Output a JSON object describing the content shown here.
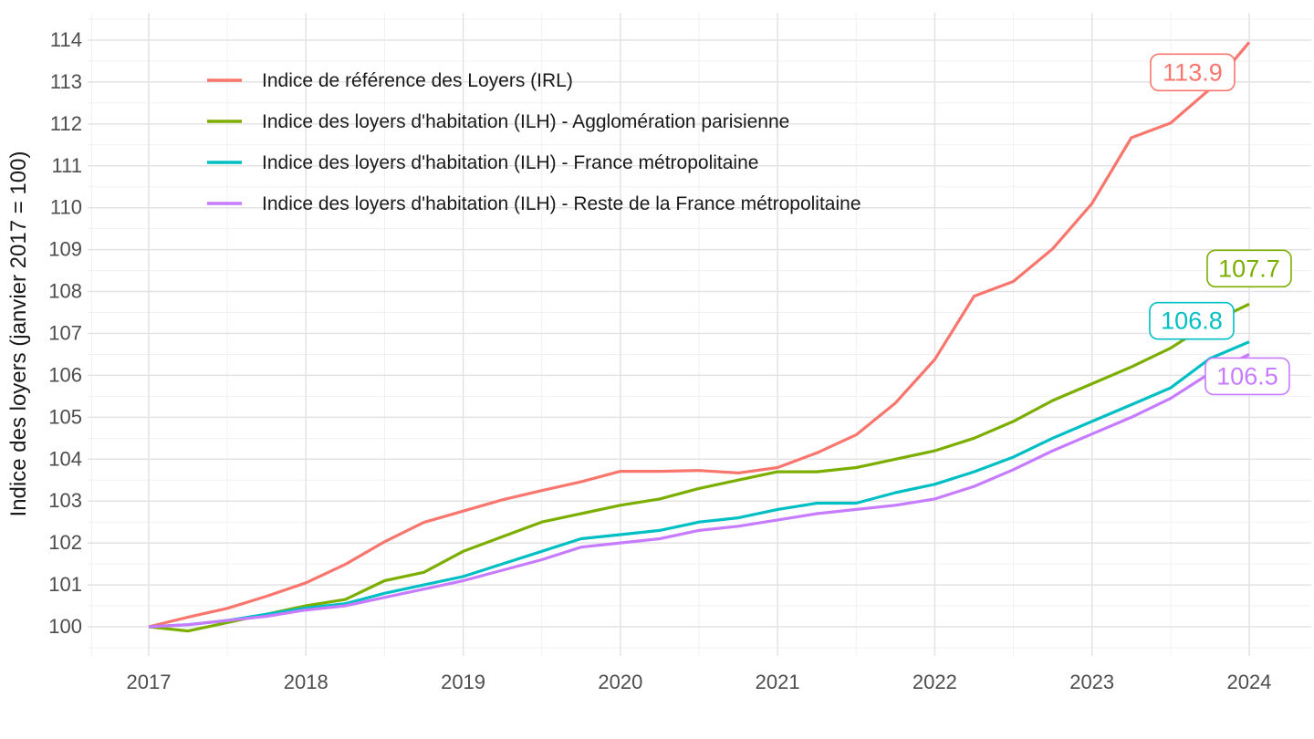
{
  "figure": {
    "background": "#FFFFFF"
  },
  "axis": {
    "tick_color": "#4D4D4D",
    "title_color": "#1A1A1A",
    "grid_major_color": "#E3E3E3",
    "grid_minor_color": "#F1F1F1"
  },
  "chart_data": {
    "type": "line",
    "title": "",
    "xlabel": "",
    "ylabel": "Indice des loyers (janvier 2017 = 100)",
    "x_ticks": [
      2017,
      2018,
      2019,
      2020,
      2021,
      2022,
      2023,
      2024
    ],
    "y_ticks": [
      100,
      101,
      102,
      103,
      104,
      105,
      106,
      107,
      108,
      109,
      110,
      111,
      112,
      113,
      114
    ],
    "xlim": [
      2016.62,
      2024.4
    ],
    "ylim": [
      99.45,
      114.55
    ],
    "grid": "major+minor",
    "legend_position": "inside-top-left",
    "x": [
      2017.0,
      2017.25,
      2017.5,
      2017.75,
      2018.0,
      2018.25,
      2018.5,
      2018.75,
      2019.0,
      2019.25,
      2019.5,
      2019.75,
      2020.0,
      2020.25,
      2020.5,
      2020.75,
      2021.0,
      2021.25,
      2021.5,
      2021.75,
      2022.0,
      2022.25,
      2022.5,
      2022.75,
      2023.0,
      2023.25,
      2023.5,
      2023.75,
      2024.0
    ],
    "series": [
      {
        "name": "Indice de référence des Loyers (IRL)",
        "color": "#F8766D",
        "end_label": "113.9",
        "values": [
          100.0,
          100.23,
          100.44,
          100.73,
          101.05,
          101.49,
          102.03,
          102.49,
          102.76,
          103.03,
          103.25,
          103.46,
          103.71,
          103.71,
          103.73,
          103.67,
          103.8,
          104.15,
          104.58,
          105.34,
          106.38,
          107.89,
          108.24,
          109.02,
          110.1,
          111.67,
          112.02,
          112.83,
          113.95
        ]
      },
      {
        "name": "Indice des loyers d'habitation (ILH) - Agglomération parisienne",
        "color": "#7CAE00",
        "end_label": "107.7",
        "values": [
          100.0,
          99.9,
          100.1,
          100.3,
          100.5,
          100.65,
          101.1,
          101.3,
          101.8,
          102.15,
          102.5,
          102.7,
          102.9,
          103.05,
          103.3,
          103.5,
          103.7,
          103.7,
          103.8,
          104.0,
          104.2,
          104.5,
          104.9,
          105.4,
          105.8,
          106.2,
          106.65,
          107.25,
          107.7
        ]
      },
      {
        "name": "Indice des loyers d'habitation (ILH) - France métropolitaine",
        "color": "#00BFC4",
        "end_label": "106.8",
        "values": [
          100.0,
          100.05,
          100.15,
          100.3,
          100.45,
          100.55,
          100.8,
          101.0,
          101.2,
          101.5,
          101.8,
          102.1,
          102.2,
          102.3,
          102.5,
          102.6,
          102.8,
          102.95,
          102.95,
          103.2,
          103.4,
          103.7,
          104.05,
          104.5,
          104.9,
          105.3,
          105.7,
          106.4,
          106.8
        ]
      },
      {
        "name": "Indice des loyers d'habitation (ILH) - Reste de la France métropolitaine",
        "color": "#C77CFF",
        "end_label": "106.5",
        "values": [
          100.0,
          100.05,
          100.15,
          100.25,
          100.4,
          100.5,
          100.7,
          100.9,
          101.1,
          101.35,
          101.6,
          101.9,
          102.0,
          102.1,
          102.3,
          102.4,
          102.55,
          102.7,
          102.8,
          102.9,
          103.05,
          103.35,
          103.75,
          104.2,
          104.6,
          105.0,
          105.45,
          106.05,
          106.5
        ]
      }
    ]
  }
}
